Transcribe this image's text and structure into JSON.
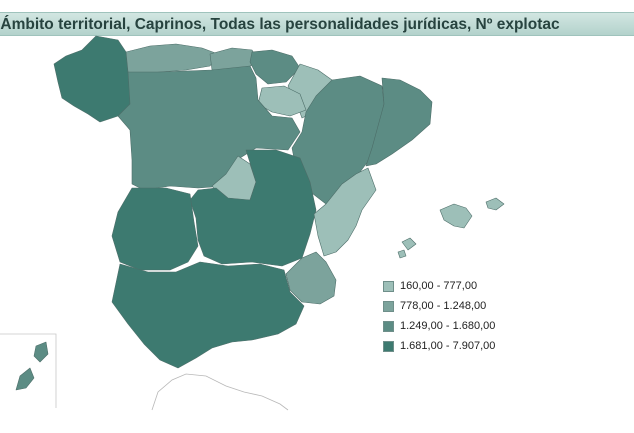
{
  "title": "io, Ámbito territorial, Caprinos, Todas las personalidades jurídicas, Nº explotac",
  "legend": [
    {
      "label": "160,00 - 777,00",
      "color": "#9dbfb8"
    },
    {
      "label": "778,00 - 1.248,00",
      "color": "#7ca39c"
    },
    {
      "label": "1.249,00 - 1.680,00",
      "color": "#5c8c84"
    },
    {
      "label": "1.681,00 - 7.907,00",
      "color": "#3d7a70"
    }
  ],
  "regions": [
    {
      "name": "Galicia",
      "class": 3
    },
    {
      "name": "Asturias",
      "class": 1
    },
    {
      "name": "Cantabria",
      "class": 1
    },
    {
      "name": "País Vasco",
      "class": 2
    },
    {
      "name": "Navarra",
      "class": 0
    },
    {
      "name": "La Rioja",
      "class": 0
    },
    {
      "name": "Castilla y León",
      "class": 2
    },
    {
      "name": "Aragón",
      "class": 2
    },
    {
      "name": "Cataluña",
      "class": 2
    },
    {
      "name": "Comunidad de Madrid",
      "class": 0
    },
    {
      "name": "Castilla-La Mancha",
      "class": 3
    },
    {
      "name": "Extremadura",
      "class": 3
    },
    {
      "name": "Comunitat Valenciana",
      "class": 0
    },
    {
      "name": "Región de Murcia",
      "class": 1
    },
    {
      "name": "Andalucía",
      "class": 3
    },
    {
      "name": "Illes Balears",
      "class": 0
    },
    {
      "name": "Canarias",
      "class": 2
    }
  ]
}
